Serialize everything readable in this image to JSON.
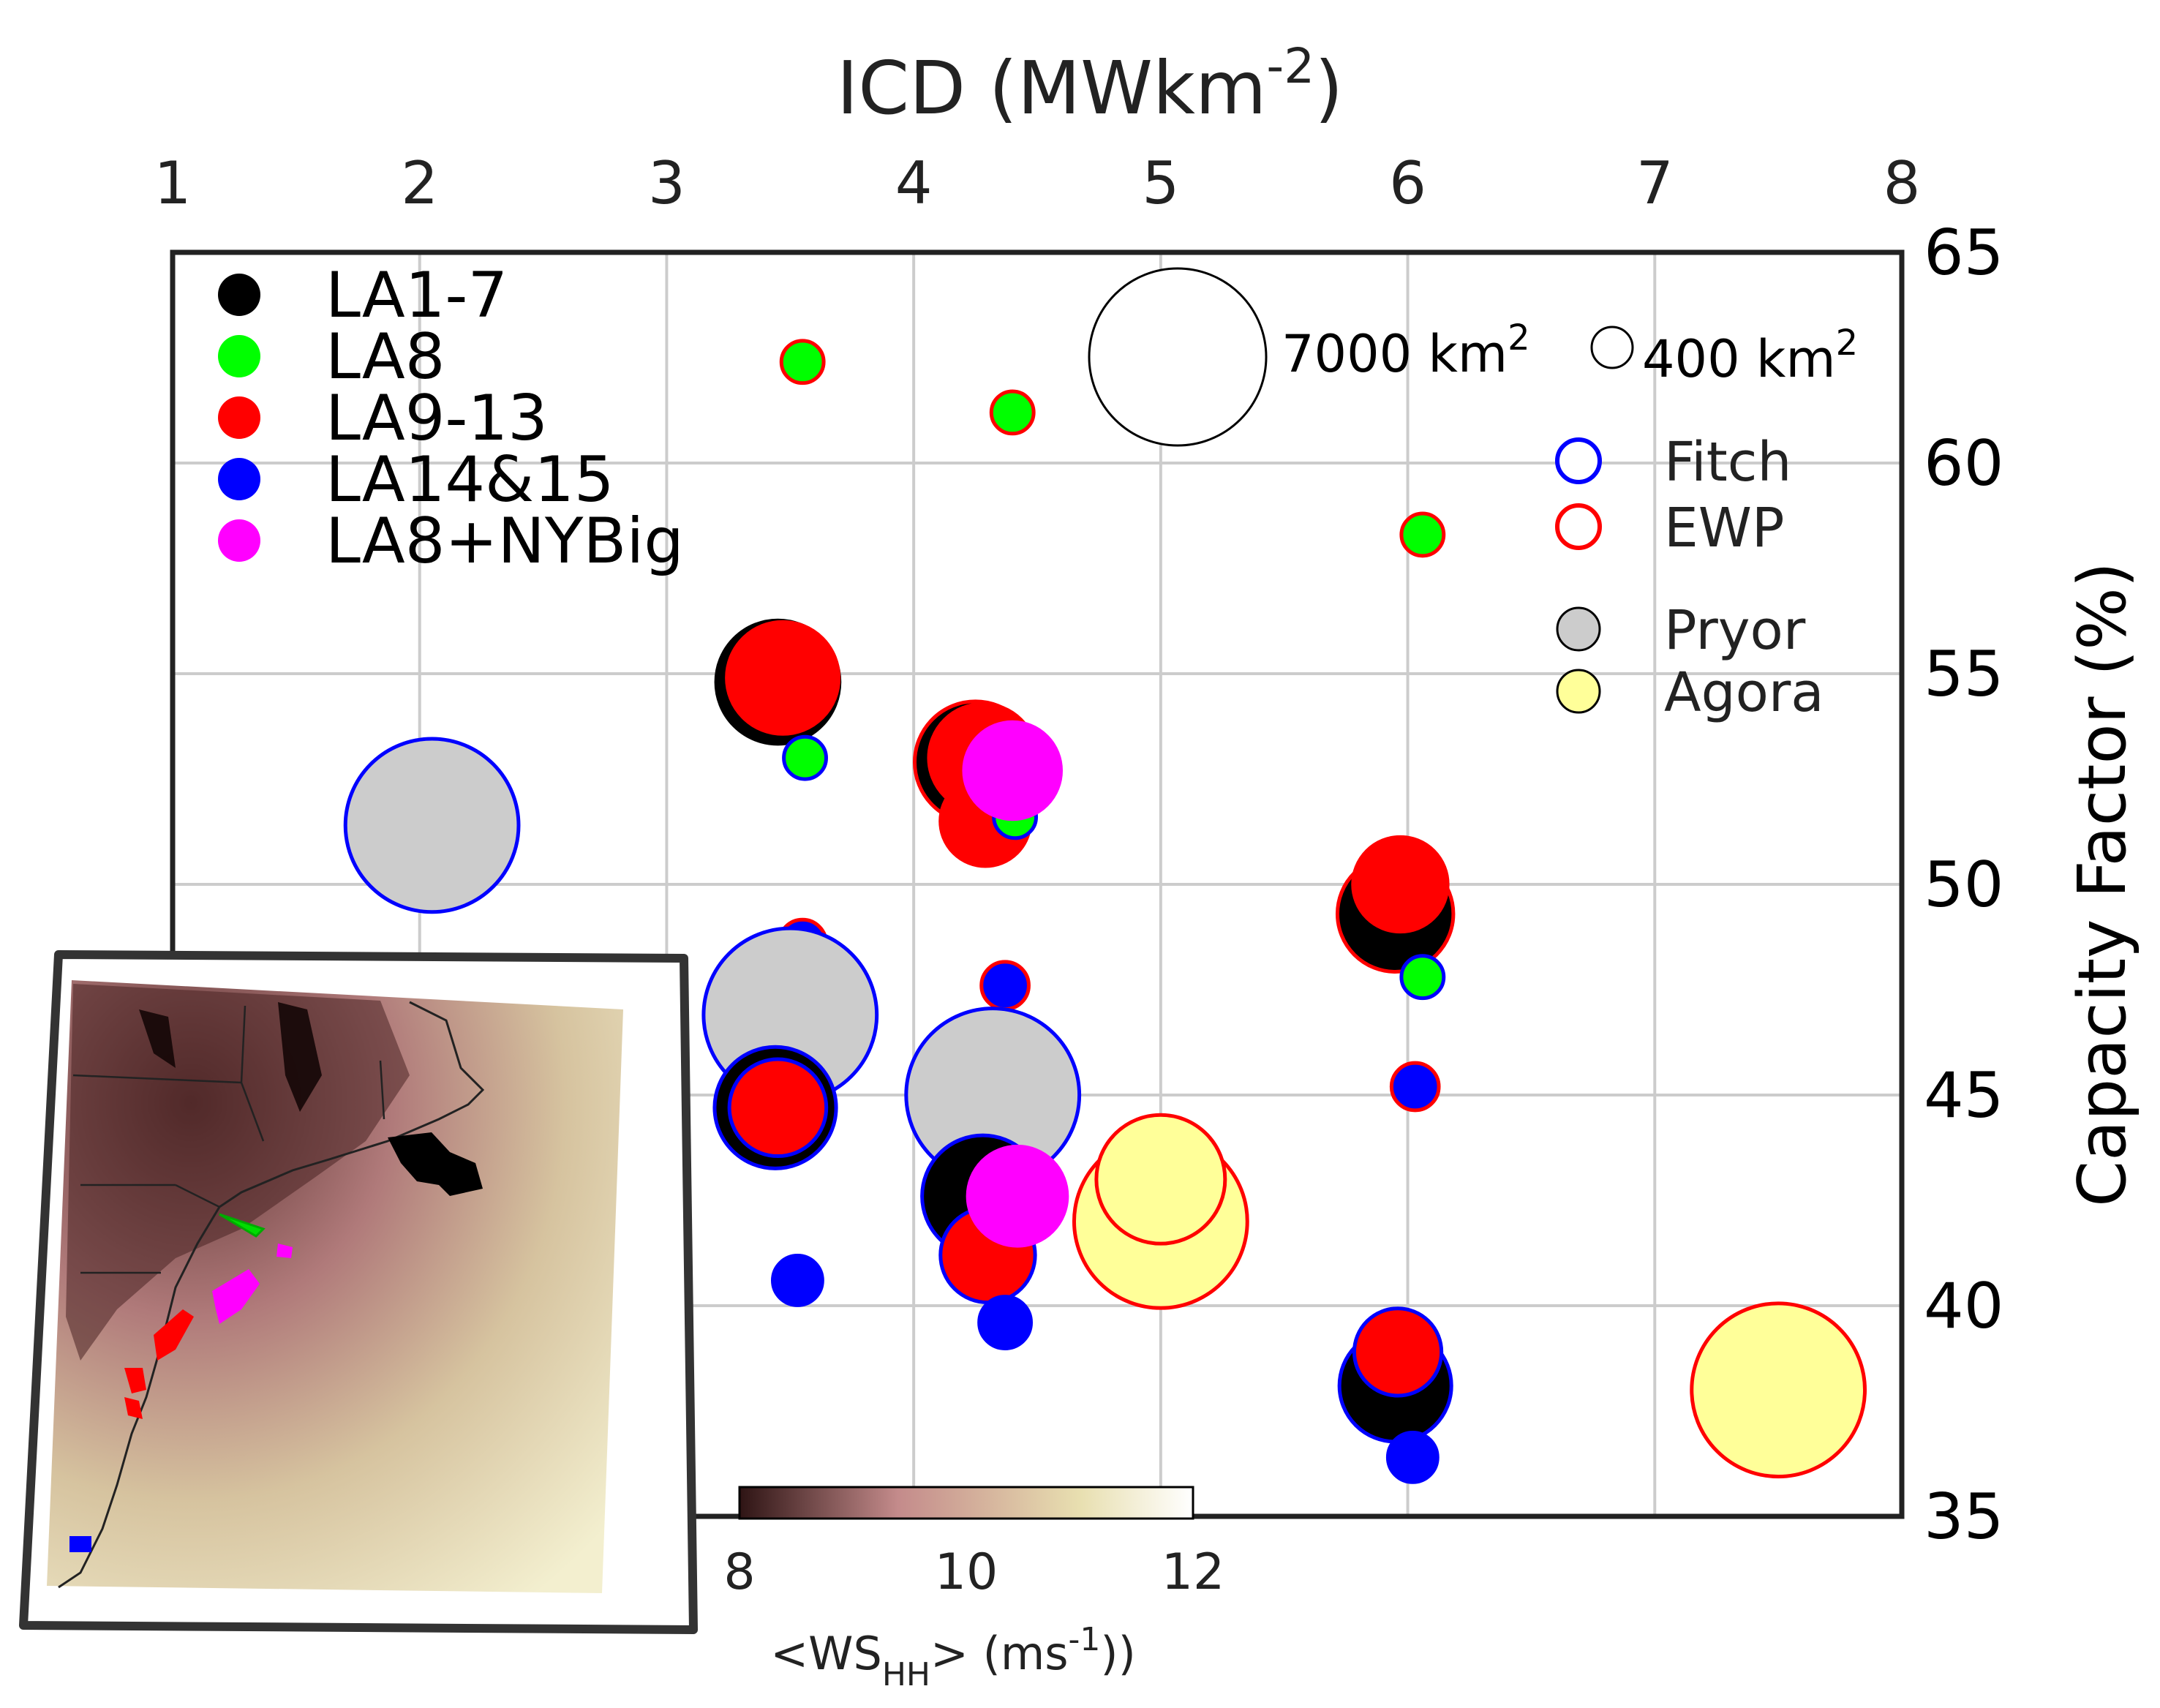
{
  "chart_data": {
    "type": "scatter",
    "title": "",
    "xlabel": "ICD (MWkm",
    "xlabel_sup": "-2",
    "xlabel_close": ")",
    "ylabel": "Capacity Factor (%)",
    "xlim": [
      1,
      8
    ],
    "ylim": [
      35,
      65
    ],
    "xticks": [
      "1",
      "2",
      "3",
      "4",
      "5",
      "6",
      "7",
      "8"
    ],
    "yticks": [
      "35",
      "40",
      "45",
      "50",
      "55",
      "60",
      "65"
    ],
    "grid": true,
    "legend_position": "top-left",
    "legend": [
      {
        "label": "LA1-7",
        "color": "#000000"
      },
      {
        "label": "LA8",
        "color": "#00ff00"
      },
      {
        "label": "LA9-13",
        "color": "#ff0000"
      },
      {
        "label": "LA14&15",
        "color": "#0000ff"
      },
      {
        "label": "LA8+NYBig",
        "color": "#ff00ff"
      }
    ],
    "edge_legend": [
      {
        "label": "Fitch",
        "edge": "#0000ff"
      },
      {
        "label": "EWP",
        "edge": "#ff0000"
      }
    ],
    "fill_legend": [
      {
        "label": "Pryor",
        "fill": "#cccccc"
      },
      {
        "label": "Agora",
        "fill": "#ffff99"
      }
    ],
    "size_legend": [
      {
        "area_km2": 7000,
        "label": "7000 km",
        "sup": "2"
      },
      {
        "area_km2": 400,
        "label": "400 km",
        "sup": "2"
      }
    ],
    "colorbar": {
      "label_prefix": "<WS",
      "label_sub": "HH",
      "label_suffix": "> (ms",
      "label_sup": "-1",
      "label_end": "))",
      "ticks": [
        "8",
        "10",
        "12"
      ],
      "range": [
        8,
        12
      ],
      "colors": [
        "#2e1414",
        "#c48b8b",
        "#e8dfb0",
        "#ffffff"
      ]
    },
    "inset_map": {
      "description_free": true,
      "farm_colors": [
        "#000000",
        "#00ff00",
        "#ff0000",
        "#0000ff",
        "#ff00ff"
      ]
    },
    "points": [
      {
        "x": 3.55,
        "y": 62.4,
        "area": 400,
        "fill": "#00ff00",
        "edge": "#ff0000"
      },
      {
        "x": 4.4,
        "y": 61.2,
        "area": 400,
        "fill": "#00ff00",
        "edge": "#ff0000"
      },
      {
        "x": 6.06,
        "y": 58.3,
        "area": 400,
        "fill": "#00ff00",
        "edge": "#ff0000"
      },
      {
        "x": 3.45,
        "y": 54.8,
        "area": 3400,
        "fill": "#000000",
        "edge": "#000000"
      },
      {
        "x": 3.47,
        "y": 54.9,
        "area": 2800,
        "fill": "#ff0000",
        "edge": "#ff0000"
      },
      {
        "x": 3.56,
        "y": 53.0,
        "area": 400,
        "fill": "#00ff00",
        "edge": "#0000ff"
      },
      {
        "x": 4.25,
        "y": 52.9,
        "area": 3300,
        "fill": "#000000",
        "edge": "#ff0000"
      },
      {
        "x": 4.28,
        "y": 53.0,
        "area": 2600,
        "fill": "#ff0000",
        "edge": "#ff0000"
      },
      {
        "x": 4.29,
        "y": 51.5,
        "area": 1800,
        "fill": "#ff0000",
        "edge": "#ff0000"
      },
      {
        "x": 4.41,
        "y": 51.6,
        "area": 400,
        "fill": "#00ff00",
        "edge": "#0000ff"
      },
      {
        "x": 4.4,
        "y": 52.7,
        "area": 2100,
        "fill": "#ff00ff",
        "edge": "#ff00ff"
      },
      {
        "x": 2.05,
        "y": 51.4,
        "area": 6700,
        "fill": "#cccccc",
        "edge": "#0000ff"
      },
      {
        "x": 5.95,
        "y": 49.3,
        "area": 3000,
        "fill": "#000000",
        "edge": "#ff0000"
      },
      {
        "x": 5.97,
        "y": 50.0,
        "area": 2000,
        "fill": "#ff0000",
        "edge": "#ff0000"
      },
      {
        "x": 6.06,
        "y": 47.8,
        "area": 400,
        "fill": "#00ff00",
        "edge": "#0000ff"
      },
      {
        "x": 3.55,
        "y": 48.6,
        "area": 500,
        "fill": "#0000ff",
        "edge": "#ff0000"
      },
      {
        "x": 3.5,
        "y": 46.9,
        "area": 6700,
        "fill": "#cccccc",
        "edge": "#0000ff"
      },
      {
        "x": 4.37,
        "y": 47.6,
        "area": 500,
        "fill": "#0000ff",
        "edge": "#ff0000"
      },
      {
        "x": 4.32,
        "y": 45.0,
        "area": 6700,
        "fill": "#cccccc",
        "edge": "#0000ff"
      },
      {
        "x": 3.44,
        "y": 44.7,
        "area": 3300,
        "fill": "#000000",
        "edge": "#0000ff"
      },
      {
        "x": 3.45,
        "y": 44.7,
        "area": 2100,
        "fill": "#ff0000",
        "edge": "#0000ff"
      },
      {
        "x": 6.03,
        "y": 45.2,
        "area": 500,
        "fill": "#0000ff",
        "edge": "#ff0000"
      },
      {
        "x": 4.28,
        "y": 42.6,
        "area": 3300,
        "fill": "#000000",
        "edge": "#0000ff"
      },
      {
        "x": 4.3,
        "y": 41.2,
        "area": 2000,
        "fill": "#ff0000",
        "edge": "#0000ff"
      },
      {
        "x": 4.42,
        "y": 42.6,
        "area": 2200,
        "fill": "#ff00ff",
        "edge": "#ff00ff"
      },
      {
        "x": 5.0,
        "y": 42.0,
        "area": 6700,
        "fill": "#ffff99",
        "edge": "#ff0000"
      },
      {
        "x": 5.0,
        "y": 43.0,
        "area": 3700,
        "fill": "#ffff99",
        "edge": "#ff0000"
      },
      {
        "x": 3.53,
        "y": 40.6,
        "area": 550,
        "fill": "#0000ff",
        "edge": "#0000ff"
      },
      {
        "x": 4.37,
        "y": 39.6,
        "area": 600,
        "fill": "#0000ff",
        "edge": "#0000ff"
      },
      {
        "x": 5.95,
        "y": 38.1,
        "area": 2800,
        "fill": "#000000",
        "edge": "#0000ff"
      },
      {
        "x": 5.96,
        "y": 38.9,
        "area": 1700,
        "fill": "#ff0000",
        "edge": "#0000ff"
      },
      {
        "x": 6.02,
        "y": 36.4,
        "area": 550,
        "fill": "#0000ff",
        "edge": "#0000ff"
      },
      {
        "x": 7.5,
        "y": 38.0,
        "area": 6700,
        "fill": "#ffff99",
        "edge": "#ff0000"
      }
    ]
  }
}
